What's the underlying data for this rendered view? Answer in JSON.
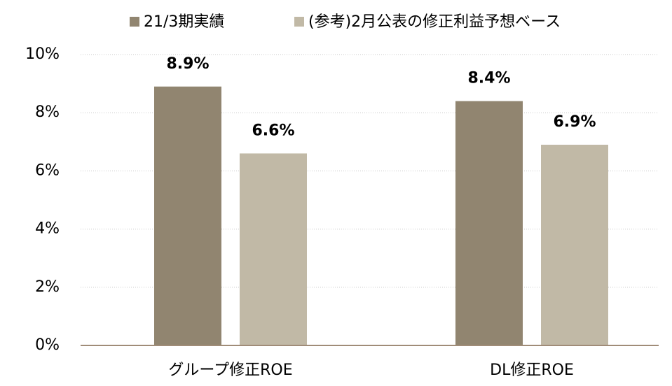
{
  "chart_data": {
    "type": "bar",
    "categories": [
      "グループ修正ROE",
      "DL修正ROE"
    ],
    "series": [
      {
        "name": "21/3期実績",
        "color": "#918570",
        "values": [
          8.9,
          8.4
        ],
        "value_labels": [
          "8.9%",
          "8.4%"
        ]
      },
      {
        "name": "(参考)2月公表の修正利益予想ベース",
        "color": "#c1b9a6",
        "values": [
          6.6,
          6.9
        ],
        "value_labels": [
          "6.6%",
          "6.9%"
        ]
      }
    ],
    "ylim": [
      0,
      10
    ],
    "yticks": [
      {
        "value": 0,
        "label": "0%"
      },
      {
        "value": 2,
        "label": "2%"
      },
      {
        "value": 4,
        "label": "4%"
      },
      {
        "value": 6,
        "label": "6%"
      },
      {
        "value": 8,
        "label": "8%"
      },
      {
        "value": 10,
        "label": "10%"
      }
    ],
    "grid": true,
    "legend": "top"
  }
}
